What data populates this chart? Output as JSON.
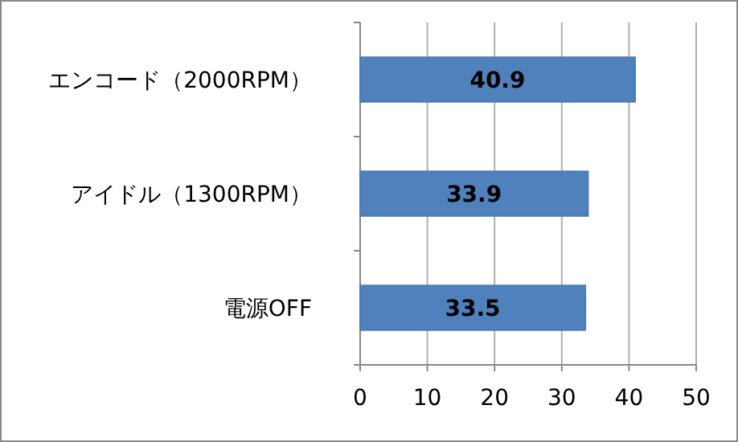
{
  "chart_data": {
    "type": "bar",
    "orientation": "horizontal",
    "categories": [
      "エンコード（2000RPM）",
      "アイドル（1300RPM）",
      "電源OFF"
    ],
    "values": [
      40.9,
      33.9,
      33.5
    ],
    "color": "#4f81bd",
    "xlim": [
      0,
      50
    ],
    "xticks": [
      0,
      10,
      20,
      30,
      40,
      50
    ],
    "grid": "x",
    "data_labels": true
  }
}
